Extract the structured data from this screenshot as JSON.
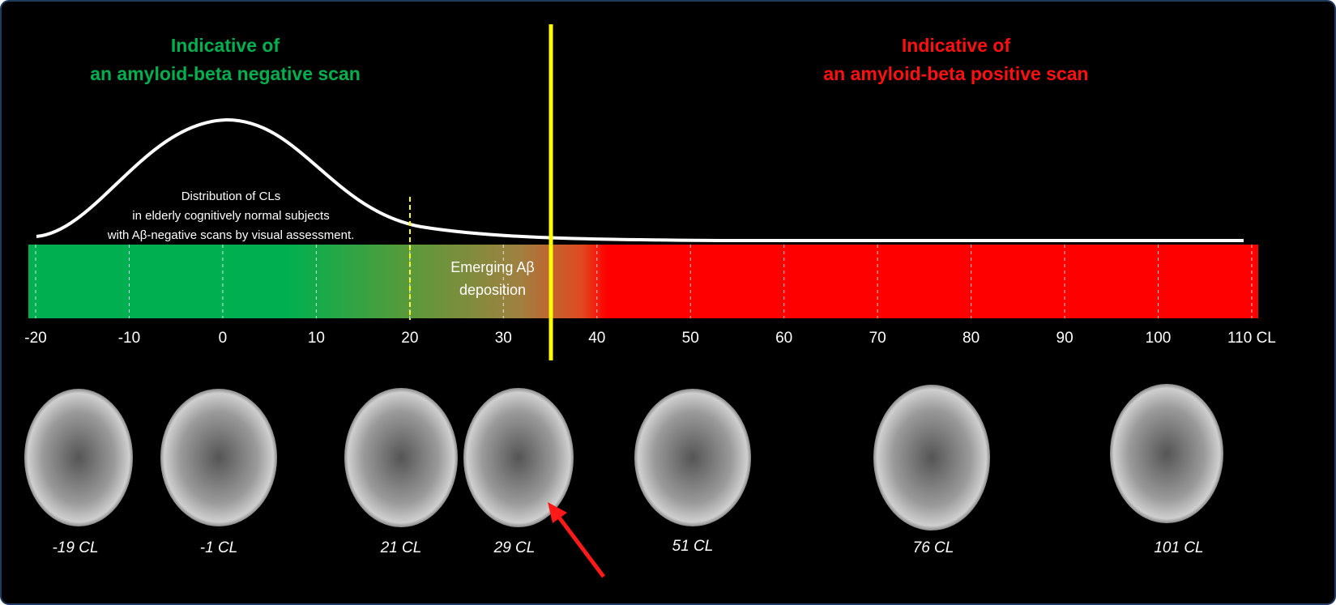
{
  "header": {
    "negative": [
      "Indicative of",
      "an amyloid-beta negative scan"
    ],
    "positive": [
      "Indicative of",
      "an amyloid-beta positive scan"
    ]
  },
  "curve_note": [
    "Distribution of CLs",
    "in elderly cognitively normal subjects",
    "with Aβ-negative scans by visual assessment."
  ],
  "zone_note": [
    "Emerging Aβ",
    "deposition"
  ],
  "scale": {
    "ticks": [
      -20,
      -10,
      0,
      10,
      20,
      30,
      40,
      50,
      60,
      70,
      80,
      90,
      100,
      {
        "value": 110,
        "label": "110 CL"
      }
    ]
  },
  "scans": [
    "-19 CL",
    "-1 CL",
    "21 CL",
    "29 CL",
    "51 CL",
    "76 CL",
    "101 CL"
  ]
}
